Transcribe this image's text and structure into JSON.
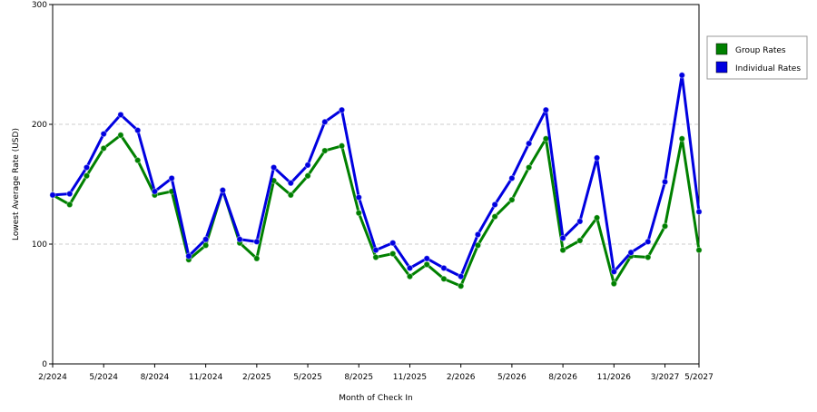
{
  "chart_data": {
    "type": "line",
    "x_label": "Month of Check In",
    "y_label": "Lowest Average Rate (USD)",
    "categories": [
      "2/2024",
      null,
      null,
      "5/2024",
      null,
      null,
      "8/2024",
      null,
      null,
      "11/2024",
      null,
      null,
      "2/2025",
      null,
      null,
      "5/2025",
      null,
      null,
      "8/2025",
      null,
      null,
      "11/2025",
      null,
      null,
      "2/2026",
      null,
      null,
      "5/2026",
      null,
      null,
      "8/2026",
      null,
      null,
      "11/2026",
      null,
      null,
      "3/2027",
      null,
      "5/2027"
    ],
    "series": [
      {
        "name": "Group Rates",
        "color": "#008000",
        "values": [
          141,
          133,
          157,
          180,
          191,
          170,
          141,
          144,
          87,
          99,
          145,
          101,
          88,
          153,
          141,
          157,
          178,
          182,
          126,
          89,
          92,
          73,
          83,
          71,
          65,
          99,
          123,
          137,
          164,
          188,
          95,
          103,
          122,
          67,
          90,
          89,
          115,
          188,
          95
        ]
      },
      {
        "name": "Individual Rates",
        "color": "#0000e0",
        "values": [
          141,
          142,
          164,
          192,
          208,
          195,
          144,
          155,
          90,
          104,
          145,
          104,
          102,
          164,
          151,
          166,
          202,
          212,
          139,
          95,
          101,
          80,
          88,
          80,
          73,
          108,
          133,
          155,
          184,
          212,
          105,
          119,
          172,
          77,
          93,
          102,
          152,
          241,
          127
        ]
      }
    ],
    "ylim": [
      0,
      300
    ],
    "yticks": [
      0,
      100,
      200,
      300
    ],
    "grid": true,
    "legend": "right"
  }
}
